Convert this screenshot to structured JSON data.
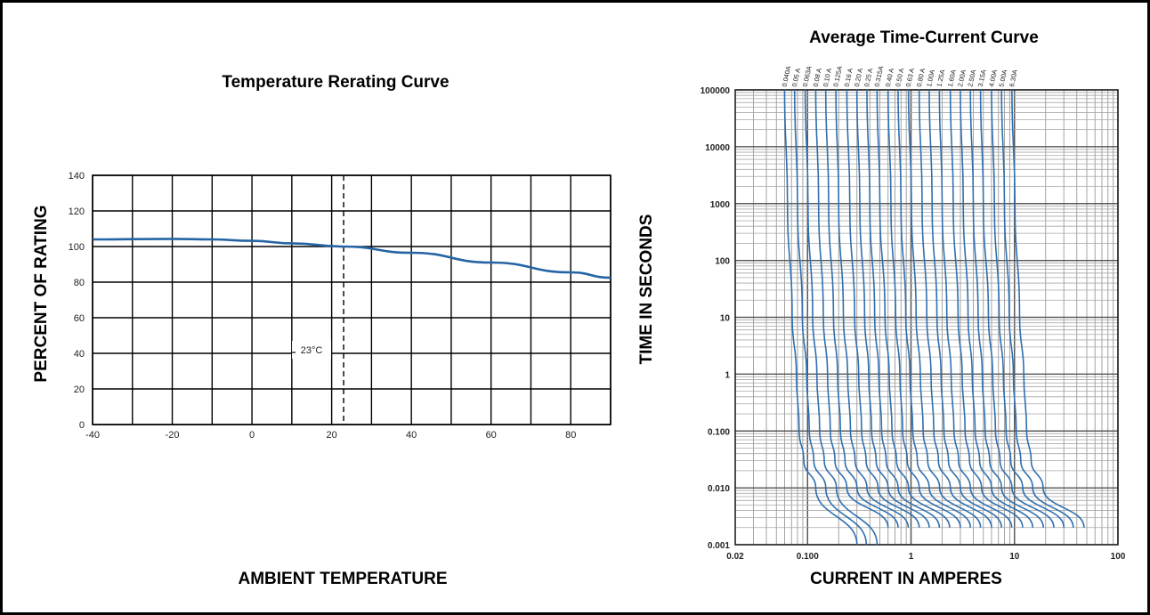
{
  "chart_data": [
    {
      "type": "line",
      "title": "Temperature Rerating Curve",
      "xlabel": "AMBIENT TEMPERATURE",
      "ylabel": "PERCENT OF RATING",
      "xlim": [
        -40,
        90
      ],
      "ylim": [
        0,
        140
      ],
      "x_ticks": [
        "-40",
        "-20",
        "0",
        "20",
        "40",
        "60",
        "80"
      ],
      "y_ticks": [
        "0",
        "20",
        "40",
        "60",
        "80",
        "100",
        "120",
        "140"
      ],
      "grid": true,
      "series": [
        {
          "color": "#2464a4",
          "x": [
            -40,
            -20,
            -10,
            0,
            10,
            23,
            40,
            60,
            80,
            90
          ],
          "y": [
            104,
            104.3,
            104,
            103.2,
            101.8,
            100,
            96.5,
            91,
            85.5,
            82.5
          ]
        }
      ],
      "annotation": {
        "text": "23°C",
        "x": 23
      }
    },
    {
      "type": "line",
      "title": "Average Time-Current Curve",
      "xlabel": "CURRENT IN AMPERES",
      "ylabel": "TIME IN SECONDS",
      "x_scale": "log",
      "y_scale": "log",
      "xlim": [
        0.02,
        100
      ],
      "ylim": [
        0.001,
        100000
      ],
      "x_ticks": [
        "0.02",
        "0.100",
        "1",
        "10",
        "100"
      ],
      "y_ticks": [
        "0.001",
        "0.010",
        "0.100",
        "1",
        "10",
        "100",
        "1000",
        "10000",
        "100000"
      ],
      "grid": true,
      "curve_color": "#2e6fb0",
      "ratings": [
        "0.040A",
        "0.05A",
        "0.063A",
        "0.08A",
        "0.10A",
        "0.125A",
        "0.16A",
        "0.20A",
        "0.25A",
        "0.315A",
        "0.40A",
        "0.50A",
        "0.63A",
        "0.80A",
        "1.00A",
        "1.25A",
        "1.60A",
        "2.00A",
        "2.50A",
        "3.15A",
        "4.00A",
        "5.00A",
        "6.30A"
      ],
      "rating_labels": [
        "0.040A",
        "0.05 A",
        "0.063A",
        "0.08 A",
        "0.10 A",
        "0.125A",
        "0.16 A",
        "0.20 A",
        "0.25 A",
        "0.315A",
        "0.40 A",
        "0.50 A",
        "0.63 A",
        "0.80 A",
        "1.00A",
        "1.25A",
        "1.60A",
        "2.00A",
        "2.50A",
        "3.15A",
        "4.00A",
        "5.00A",
        "6.30A"
      ],
      "series": [
        {
          "name": "0.040A",
          "x": [
            0.06,
            0.064,
            0.071,
            0.078,
            0.083,
            0.092,
            0.12,
            0.3
          ],
          "y": [
            100000,
            1000,
            10,
            1,
            0.1,
            0.03,
            0.01,
            0.001
          ]
        },
        {
          "name": "0.05A",
          "x": [
            0.075,
            0.08,
            0.089,
            0.098,
            0.104,
            0.115,
            0.15,
            0.37
          ],
          "y": [
            100000,
            1000,
            10,
            1,
            0.1,
            0.03,
            0.01,
            0.001
          ]
        },
        {
          "name": "0.063A",
          "x": [
            0.095,
            0.101,
            0.112,
            0.123,
            0.131,
            0.145,
            0.19,
            0.47
          ],
          "y": [
            100000,
            1000,
            10,
            1,
            0.1,
            0.03,
            0.01,
            0.001
          ]
        },
        {
          "name": "0.08A",
          "x": [
            0.12,
            0.128,
            0.142,
            0.156,
            0.166,
            0.184,
            0.24,
            0.6
          ],
          "y": [
            100000,
            1000,
            10,
            1,
            0.1,
            0.03,
            0.01,
            0.002
          ]
        },
        {
          "name": "0.10A",
          "x": [
            0.15,
            0.16,
            0.178,
            0.195,
            0.208,
            0.23,
            0.3,
            0.75
          ],
          "y": [
            100000,
            1000,
            10,
            1,
            0.1,
            0.03,
            0.01,
            0.002
          ]
        },
        {
          "name": "0.125A",
          "x": [
            0.188,
            0.2,
            0.222,
            0.244,
            0.26,
            0.288,
            0.375,
            0.94
          ],
          "y": [
            100000,
            1000,
            10,
            1,
            0.1,
            0.03,
            0.01,
            0.002
          ]
        },
        {
          "name": "0.16A",
          "x": [
            0.24,
            0.256,
            0.285,
            0.312,
            0.333,
            0.368,
            0.48,
            1.2
          ],
          "y": [
            100000,
            1000,
            10,
            1,
            0.1,
            0.03,
            0.01,
            0.002
          ]
        },
        {
          "name": "0.20A",
          "x": [
            0.3,
            0.32,
            0.356,
            0.39,
            0.416,
            0.46,
            0.6,
            1.5
          ],
          "y": [
            100000,
            1000,
            10,
            1,
            0.1,
            0.03,
            0.01,
            0.002
          ]
        },
        {
          "name": "0.25A",
          "x": [
            0.375,
            0.4,
            0.445,
            0.488,
            0.52,
            0.575,
            0.75,
            1.88
          ],
          "y": [
            100000,
            1000,
            10,
            1,
            0.1,
            0.03,
            0.01,
            0.002
          ]
        },
        {
          "name": "0.315A",
          "x": [
            0.47,
            0.5,
            0.56,
            0.615,
            0.655,
            0.725,
            0.945,
            2.36
          ],
          "y": [
            100000,
            1000,
            10,
            1,
            0.1,
            0.03,
            0.01,
            0.002
          ]
        },
        {
          "name": "0.40A",
          "x": [
            0.6,
            0.64,
            0.71,
            0.78,
            0.83,
            0.92,
            1.2,
            3.0
          ],
          "y": [
            100000,
            1000,
            10,
            1,
            0.1,
            0.03,
            0.01,
            0.002
          ]
        },
        {
          "name": "0.50A",
          "x": [
            0.75,
            0.8,
            0.89,
            0.975,
            1.04,
            1.15,
            1.5,
            3.75
          ],
          "y": [
            100000,
            1000,
            10,
            1,
            0.1,
            0.03,
            0.01,
            0.002
          ]
        },
        {
          "name": "0.63A",
          "x": [
            0.945,
            1.01,
            1.12,
            1.23,
            1.31,
            1.45,
            1.89,
            4.7
          ],
          "y": [
            100000,
            1000,
            10,
            1,
            0.1,
            0.03,
            0.01,
            0.002
          ]
        },
        {
          "name": "0.80A",
          "x": [
            1.2,
            1.28,
            1.42,
            1.56,
            1.66,
            1.84,
            2.4,
            6.0
          ],
          "y": [
            100000,
            1000,
            10,
            1,
            0.1,
            0.03,
            0.01,
            0.002
          ]
        },
        {
          "name": "1.00A",
          "x": [
            1.5,
            1.6,
            1.78,
            1.95,
            2.08,
            2.3,
            3.0,
            7.5
          ],
          "y": [
            100000,
            1000,
            10,
            1,
            0.1,
            0.03,
            0.01,
            0.002
          ]
        },
        {
          "name": "1.25A",
          "x": [
            1.88,
            2.0,
            2.22,
            2.44,
            2.6,
            2.88,
            3.75,
            9.4
          ],
          "y": [
            100000,
            1000,
            10,
            1,
            0.1,
            0.03,
            0.01,
            0.002
          ]
        },
        {
          "name": "1.60A",
          "x": [
            2.4,
            2.56,
            2.85,
            3.12,
            3.33,
            3.68,
            4.8,
            12
          ],
          "y": [
            100000,
            1000,
            10,
            1,
            0.1,
            0.03,
            0.01,
            0.002
          ]
        },
        {
          "name": "2.00A",
          "x": [
            3.0,
            3.2,
            3.56,
            3.9,
            4.16,
            4.6,
            6.0,
            15
          ],
          "y": [
            100000,
            1000,
            10,
            1,
            0.1,
            0.03,
            0.01,
            0.002
          ]
        },
        {
          "name": "2.50A",
          "x": [
            3.75,
            4.0,
            4.45,
            4.88,
            5.2,
            5.75,
            7.5,
            19
          ],
          "y": [
            100000,
            1000,
            10,
            1,
            0.1,
            0.03,
            0.01,
            0.002
          ]
        },
        {
          "name": "3.15A",
          "x": [
            4.7,
            5.0,
            5.6,
            6.15,
            6.55,
            7.25,
            9.45,
            24
          ],
          "y": [
            100000,
            1000,
            10,
            1,
            0.1,
            0.03,
            0.01,
            0.002
          ]
        },
        {
          "name": "4.00A",
          "x": [
            6.0,
            6.4,
            7.1,
            7.8,
            8.3,
            9.2,
            12,
            30
          ],
          "y": [
            100000,
            1000,
            10,
            1,
            0.1,
            0.03,
            0.01,
            0.002
          ]
        },
        {
          "name": "5.00A",
          "x": [
            7.5,
            8.0,
            8.9,
            9.75,
            10.4,
            11.5,
            15,
            37
          ],
          "y": [
            100000,
            1000,
            10,
            1,
            0.1,
            0.03,
            0.01,
            0.002
          ]
        },
        {
          "name": "6.30A",
          "x": [
            9.45,
            10.1,
            11.2,
            12.3,
            13.1,
            14.5,
            18.9,
            47
          ],
          "y": [
            100000,
            1000,
            10,
            1,
            0.1,
            0.03,
            0.01,
            0.002
          ]
        }
      ]
    }
  ]
}
